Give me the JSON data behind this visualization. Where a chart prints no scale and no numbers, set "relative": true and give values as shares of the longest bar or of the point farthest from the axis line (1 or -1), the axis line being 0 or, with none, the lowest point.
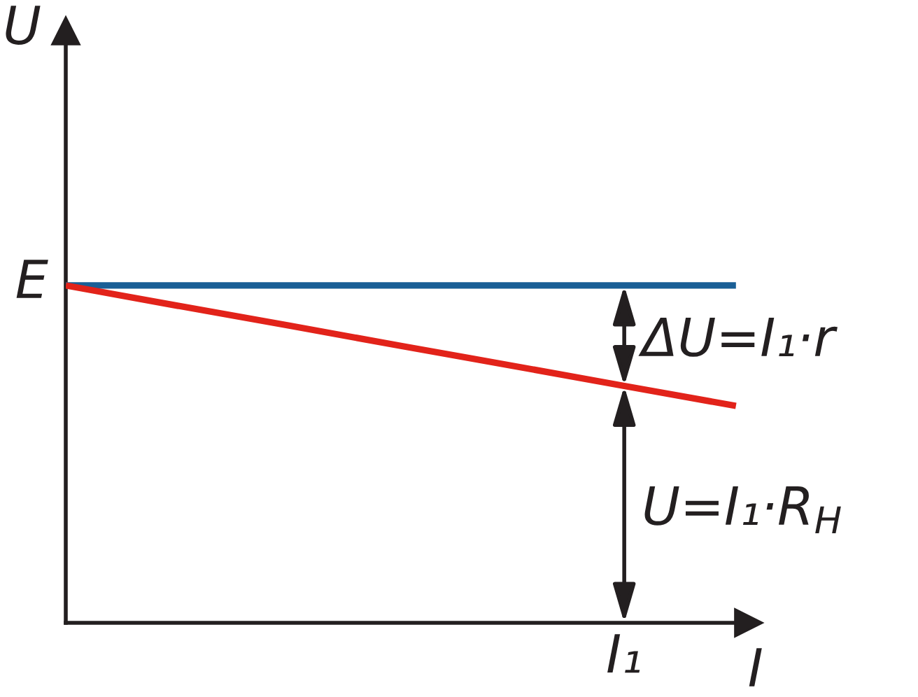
{
  "chart_data": {
    "type": "line",
    "xlabel": "I",
    "ylabel": "U",
    "relative": true,
    "categories": [
      null,
      null,
      null,
      null,
      null,
      null,
      null
    ],
    "series": [
      {
        "color": "#1a5f96",
        "values": [
          1,
          1,
          1,
          1,
          1,
          1,
          1
        ]
      },
      {
        "color": "#e2231a",
        "values": [
          1,
          0.94,
          0.881,
          0.821,
          0.762,
          0.702,
          0.643
        ]
      }
    ],
    "annotations": [
      "E",
      "ΔU=I₁·r",
      "U=I₁·R$_{H}$",
      "I₁"
    ]
  }
}
